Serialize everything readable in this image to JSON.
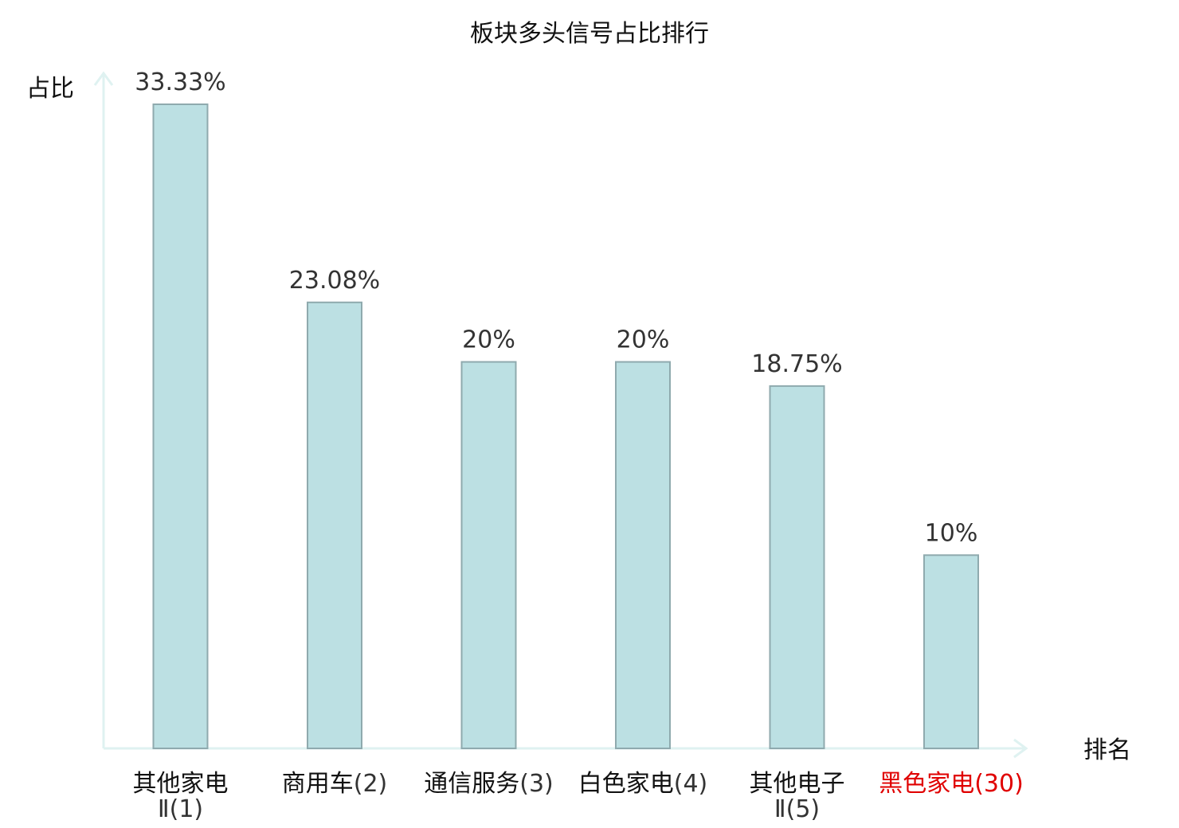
{
  "chart_data": {
    "type": "bar",
    "title": "板块多头信号占比排行",
    "ylabel": "占比",
    "xlabel": "排名",
    "categories": [
      {
        "name_lines": [
          "其他家电",
          "Ⅱ(1)"
        ]
      },
      {
        "name_lines": [
          "商用车(2)"
        ]
      },
      {
        "name_lines": [
          "通信服务(3)"
        ]
      },
      {
        "name_lines": [
          "白色家电(4)"
        ]
      },
      {
        "name_lines": [
          "其他电子",
          "Ⅱ(5)"
        ]
      },
      {
        "name_lines": [
          "黑色家电(30)"
        ],
        "highlight": true
      }
    ],
    "values": [
      33.33,
      23.08,
      20,
      20,
      18.75,
      10
    ],
    "value_labels": [
      "33.33%",
      "23.08%",
      "20%",
      "20%",
      "18.75%",
      "10%"
    ],
    "ylim": [
      0,
      33.33
    ],
    "grid": false,
    "colors": {
      "bar_fill": "#bce0e3",
      "bar_stroke": "#8faaae",
      "axis": "#dff2f1",
      "highlight_text": "#e00000"
    }
  }
}
